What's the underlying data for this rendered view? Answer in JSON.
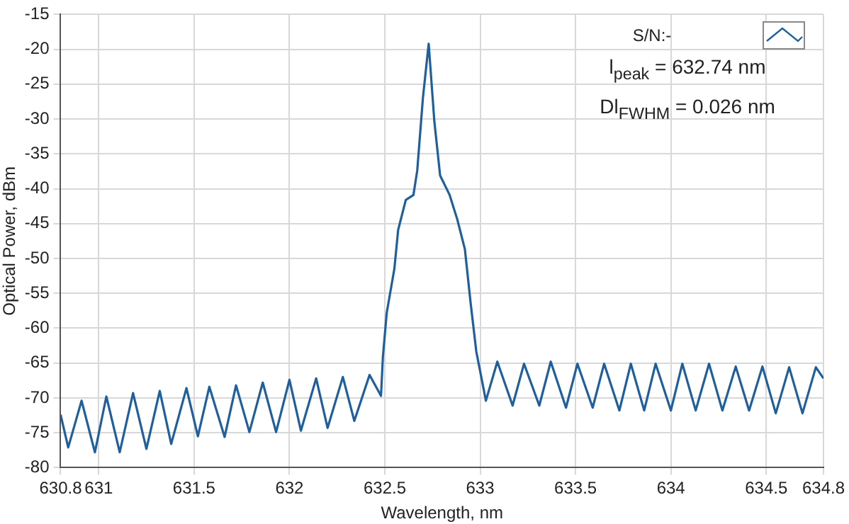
{
  "chart_data": {
    "type": "line",
    "xlabel": "Wavelength, nm",
    "ylabel": "Optical Power, dBm",
    "annotations": [
      "S/N:-",
      "l$_{peak}$ = 632.74 nm",
      "Dl$_{FWHM}$ = 0.026 nm"
    ],
    "xlim": [
      630.8,
      634.8
    ],
    "xticks": [
      630.8,
      631,
      631.5,
      632,
      632.5,
      633,
      633.5,
      634,
      634.5,
      634.8
    ],
    "ylim": [
      -80,
      -15
    ],
    "yticks": [
      -80,
      -75,
      -70,
      -65,
      -60,
      -55,
      -50,
      -45,
      -40,
      -35,
      -30,
      -25,
      -20,
      -15
    ],
    "grid": true,
    "legend": false,
    "marker": "none",
    "line_style": "solid",
    "series": [
      {
        "color": "#1f5f9e",
        "x": [
          630.8,
          630.84,
          630.91,
          630.98,
          631.04,
          631.11,
          631.18,
          631.25,
          631.32,
          631.38,
          631.46,
          631.52,
          631.58,
          631.66,
          631.72,
          631.79,
          631.86,
          631.93,
          632.0,
          632.06,
          632.14,
          632.2,
          632.28,
          632.34,
          632.42,
          632.48,
          632.49,
          632.51,
          632.55,
          632.57,
          632.61,
          632.65,
          632.67,
          632.7,
          632.73,
          632.76,
          632.79,
          632.84,
          632.88,
          632.92,
          632.95,
          632.98,
          633.03,
          633.09,
          633.17,
          633.23,
          633.31,
          633.37,
          633.45,
          633.51,
          633.59,
          633.65,
          633.73,
          633.79,
          633.86,
          633.92,
          634.0,
          634.06,
          634.13,
          634.2,
          634.27,
          634.34,
          634.41,
          634.48,
          634.55,
          634.62,
          634.69,
          634.76,
          634.8
        ],
        "values": [
          -72.4,
          -77.1,
          -70.4,
          -77.8,
          -69.8,
          -77.8,
          -69.3,
          -77.3,
          -69.0,
          -76.6,
          -68.6,
          -75.5,
          -68.4,
          -75.6,
          -68.2,
          -74.9,
          -67.8,
          -74.9,
          -67.4,
          -74.7,
          -67.2,
          -74.3,
          -67.0,
          -73.3,
          -66.7,
          -69.7,
          -64.1,
          -57.8,
          -51.5,
          -45.9,
          -41.6,
          -40.9,
          -37.4,
          -26.9,
          -19.2,
          -30.4,
          -38.1,
          -40.9,
          -44.4,
          -48.7,
          -56.4,
          -63.4,
          -70.4,
          -64.8,
          -71.1,
          -65.1,
          -71.1,
          -64.8,
          -71.4,
          -65.1,
          -71.4,
          -65.1,
          -71.8,
          -65.1,
          -71.8,
          -65.1,
          -71.8,
          -65.1,
          -71.8,
          -65.1,
          -71.8,
          -65.5,
          -71.8,
          -65.5,
          -72.2,
          -65.6,
          -72.2,
          -65.6,
          -67.2
        ]
      }
    ]
  }
}
